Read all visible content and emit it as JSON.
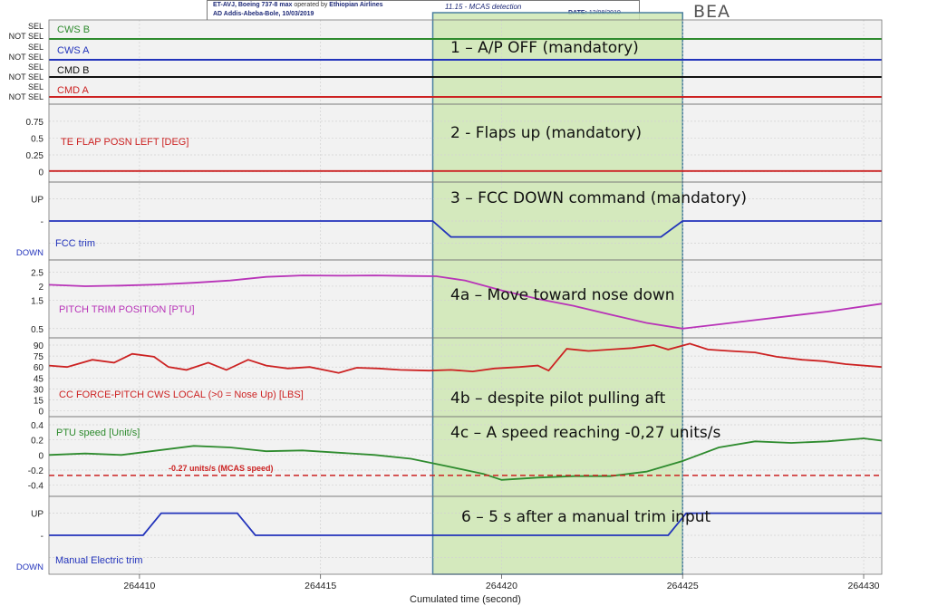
{
  "header": {
    "aircraft_line": "ET-AVJ, Boeing 737-8 max",
    "operated_by": "operated by",
    "airline": "Ethiopian Airlines",
    "airport_line": "AD Addis-Abeba-Bole, 10/03/2019",
    "figure_id": "11.15 - MCAS detection",
    "date_label": "DATE:",
    "date_value": "12/08/2019",
    "brand": "BEA"
  },
  "chart_data": {
    "type": "line",
    "xlabel": "Cumulated time (second)",
    "xlim": [
      264407.5,
      264430.5
    ],
    "xticks": [
      264410,
      264415,
      264420,
      264425,
      264430
    ],
    "highlight": {
      "x_start": 264418.1,
      "x_end": 264425.0,
      "color": "#cfe8b4"
    },
    "panels": [
      {
        "id": "modes",
        "discretes": [
          {
            "name": "CWS B",
            "state_labels": [
              "SEL",
              "NOT SEL"
            ],
            "state": "SEL",
            "color": "#2e8b2e"
          },
          {
            "name": "CWS A",
            "state_labels": [
              "SEL",
              "NOT SEL"
            ],
            "state": "SEL",
            "color": "#2233bb"
          },
          {
            "name": "CMD B",
            "state_labels": [
              "SEL",
              "NOT SEL"
            ],
            "state": "NOT SEL",
            "color": "#111111"
          },
          {
            "name": "CMD A",
            "state_labels": [
              "SEL",
              "NOT SEL"
            ],
            "state": "NOT SEL",
            "color": "#cc2222"
          }
        ]
      },
      {
        "id": "flap",
        "label": "TE FLAP POSN LEFT [DEG]",
        "color": "#cc2222",
        "ylim": [
          -0.1,
          0.95
        ],
        "yticks": [
          0,
          0.25,
          0.5,
          0.75
        ],
        "ytick_labels": [
          "0",
          "0.25",
          "0.5",
          "0.75"
        ],
        "points": [
          [
            264407.5,
            0.01
          ],
          [
            264430.5,
            0.01
          ]
        ]
      },
      {
        "id": "fcc",
        "label": "FCC trim",
        "color": "#2233bb",
        "state_labels": [
          "UP",
          "-",
          "DOWN"
        ],
        "ylim": [
          -1.6,
          1.6
        ],
        "yticks": [
          1,
          0,
          -1
        ],
        "ytick_labels": [
          "UP",
          "-",
          ""
        ],
        "bottom_label": "DOWN",
        "points": [
          [
            264407.5,
            0
          ],
          [
            264418.1,
            0
          ],
          [
            264418.6,
            -0.72
          ],
          [
            264424.4,
            -0.72
          ],
          [
            264425.0,
            0
          ],
          [
            264430.5,
            0
          ]
        ]
      },
      {
        "id": "pitch",
        "label": "PITCH TRIM POSITION [PTU]",
        "color": "#b833b8",
        "ylim": [
          0.3,
          2.8
        ],
        "yticks": [
          0.5,
          1.5,
          2,
          2.5
        ],
        "ytick_labels": [
          "0.5",
          "1.5",
          "2",
          "2.5"
        ],
        "points": [
          [
            264407.5,
            2.05
          ],
          [
            264408.5,
            2.0
          ],
          [
            264409.5,
            2.02
          ],
          [
            264410.5,
            2.06
          ],
          [
            264411.5,
            2.12
          ],
          [
            264412.5,
            2.2
          ],
          [
            264413.5,
            2.33
          ],
          [
            264414.5,
            2.38
          ],
          [
            264415.5,
            2.37
          ],
          [
            264416.5,
            2.38
          ],
          [
            264417.5,
            2.36
          ],
          [
            264418.2,
            2.35
          ],
          [
            264419,
            2.2
          ],
          [
            264420,
            1.85
          ],
          [
            264421,
            1.55
          ],
          [
            264422,
            1.3
          ],
          [
            264423,
            1.0
          ],
          [
            264424,
            0.7
          ],
          [
            264425,
            0.5
          ],
          [
            264426,
            0.65
          ],
          [
            264427,
            0.8
          ],
          [
            264428,
            0.95
          ],
          [
            264429,
            1.1
          ],
          [
            264430.5,
            1.38
          ]
        ]
      },
      {
        "id": "force",
        "label": "CC FORCE-PITCH CWS LOCAL (>0 = Nose Up) [LBS]",
        "color": "#cc2222",
        "ylim": [
          -3,
          95
        ],
        "yticks": [
          0,
          15,
          30,
          45,
          60,
          75,
          90
        ],
        "ytick_labels": [
          "0",
          "15",
          "30",
          "45",
          "60",
          "75",
          "90"
        ],
        "points": [
          [
            264407.5,
            62
          ],
          [
            264408,
            60
          ],
          [
            264408.7,
            70
          ],
          [
            264409.3,
            66
          ],
          [
            264409.8,
            78
          ],
          [
            264410.4,
            74
          ],
          [
            264410.8,
            60
          ],
          [
            264411.3,
            56
          ],
          [
            264411.9,
            66
          ],
          [
            264412.4,
            56
          ],
          [
            264413,
            70
          ],
          [
            264413.5,
            62
          ],
          [
            264414.1,
            58
          ],
          [
            264414.7,
            60
          ],
          [
            264415.2,
            55
          ],
          [
            264415.5,
            52
          ],
          [
            264416,
            59
          ],
          [
            264416.6,
            58
          ],
          [
            264417.2,
            56
          ],
          [
            264418,
            55
          ],
          [
            264418.6,
            56
          ],
          [
            264419.2,
            54
          ],
          [
            264419.8,
            58
          ],
          [
            264420.5,
            60
          ],
          [
            264421,
            62
          ],
          [
            264421.3,
            55
          ],
          [
            264421.8,
            85
          ],
          [
            264422.4,
            82
          ],
          [
            264423,
            84
          ],
          [
            264423.6,
            86
          ],
          [
            264424.2,
            90
          ],
          [
            264424.6,
            84
          ],
          [
            264425.2,
            92
          ],
          [
            264425.7,
            84
          ],
          [
            264426.3,
            82
          ],
          [
            264427,
            80
          ],
          [
            264427.6,
            74
          ],
          [
            264428.3,
            70
          ],
          [
            264428.9,
            68
          ],
          [
            264429.5,
            64
          ],
          [
            264430.5,
            60
          ]
        ]
      },
      {
        "id": "ptu",
        "label": "PTU speed [Unit/s]",
        "color": "#2e8b2e",
        "ylim": [
          -0.5,
          0.46
        ],
        "yticks": [
          -0.4,
          -0.2,
          0,
          0.2,
          0.4
        ],
        "ytick_labels": [
          "-0.4",
          "-0.2",
          "0",
          "0.2",
          "0.4"
        ],
        "threshold": {
          "value": -0.27,
          "label": "-0.27 units/s (MCAS speed)",
          "color": "#cc2222"
        },
        "points": [
          [
            264407.5,
            0.0
          ],
          [
            264408.5,
            0.02
          ],
          [
            264409.5,
            0.0
          ],
          [
            264410.5,
            0.06
          ],
          [
            264411.5,
            0.12
          ],
          [
            264412.5,
            0.1
          ],
          [
            264413.5,
            0.05
          ],
          [
            264414.5,
            0.06
          ],
          [
            264415.5,
            0.03
          ],
          [
            264416.5,
            0.0
          ],
          [
            264417.5,
            -0.05
          ],
          [
            264418.5,
            -0.15
          ],
          [
            264419.5,
            -0.25
          ],
          [
            264420,
            -0.33
          ],
          [
            264421,
            -0.3
          ],
          [
            264422,
            -0.28
          ],
          [
            264423,
            -0.28
          ],
          [
            264424,
            -0.22
          ],
          [
            264425,
            -0.08
          ],
          [
            264426,
            0.1
          ],
          [
            264427,
            0.18
          ],
          [
            264428,
            0.16
          ],
          [
            264429,
            0.18
          ],
          [
            264430,
            0.22
          ],
          [
            264430.5,
            0.19
          ]
        ]
      },
      {
        "id": "manual",
        "label": "Manual Electric trim",
        "color": "#2233bb",
        "state_labels": [
          "UP",
          "-",
          "DOWN"
        ],
        "ylim": [
          -1.6,
          1.6
        ],
        "yticks": [
          1,
          0,
          -1
        ],
        "ytick_labels": [
          "UP",
          "-",
          ""
        ],
        "bottom_label": "DOWN",
        "points": [
          [
            264407.5,
            0
          ],
          [
            264410.1,
            0
          ],
          [
            264410.6,
            1
          ],
          [
            264412.7,
            1
          ],
          [
            264413.2,
            0
          ],
          [
            264424.6,
            0
          ],
          [
            264425.1,
            1
          ],
          [
            264430.5,
            1
          ]
        ]
      }
    ],
    "annotations": [
      "1 – A/P OFF (mandatory)",
      "2 - Flaps up (mandatory)",
      "3 – FCC DOWN command (mandatory)",
      "4a – Move toward nose down",
      "4b – despite pilot pulling aft",
      "4c – A speed reaching -0,27 units/s",
      "6 – 5 s after a manual trim input"
    ]
  }
}
